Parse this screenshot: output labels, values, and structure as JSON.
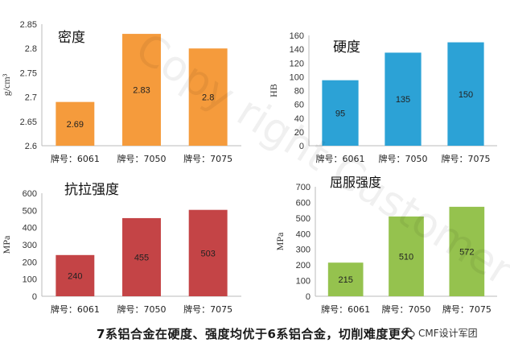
{
  "caption": "7系铝合金在硬度、强度均优于6系铝合金，切削难度更大",
  "watermark": {
    "text": "CMF设计军团",
    "icon": "wechat-icon",
    "background_text": "Copy right Customer"
  },
  "colors": {
    "orange": "#F59B3C",
    "blue": "#2CA2D6",
    "red": "#C44446",
    "green": "#95C24E"
  },
  "chart_data": [
    {
      "type": "bar",
      "title": "密度",
      "ylabel": "g/cm³",
      "ylim": [
        2.6,
        2.85
      ],
      "yticks": [
        "2.6",
        "2.65",
        "2.7",
        "2.75",
        "2.8",
        "2.85"
      ],
      "categories": [
        "牌号：6061",
        "牌号：7050",
        "牌号：7075"
      ],
      "values": [
        2.69,
        2.83,
        2.8
      ],
      "labels": [
        "2.69",
        "2.83",
        "2.8"
      ],
      "color": "#F59B3C"
    },
    {
      "type": "bar",
      "title": "硬度",
      "ylabel": "HB",
      "ylim": [
        0,
        160
      ],
      "yticks": [
        "0",
        "20",
        "40",
        "60",
        "80",
        "100",
        "120",
        "140",
        "160"
      ],
      "categories": [
        "牌号：6061",
        "牌号：7050",
        "牌号：7075"
      ],
      "values": [
        95,
        135,
        150
      ],
      "labels": [
        "95",
        "135",
        "150"
      ],
      "color": "#2CA2D6"
    },
    {
      "type": "bar",
      "title": "抗拉强度",
      "ylabel": "MPa",
      "ylim": [
        0,
        600
      ],
      "yticks": [
        "0",
        "100",
        "200",
        "300",
        "400",
        "500",
        "600"
      ],
      "categories": [
        "牌号：6061",
        "牌号：7050",
        "牌号：7075"
      ],
      "values": [
        240,
        455,
        503
      ],
      "labels": [
        "240",
        "455",
        "503"
      ],
      "color": "#C44446"
    },
    {
      "type": "bar",
      "title": "屈服强度",
      "ylabel": "MPa",
      "ylim": [
        0,
        700
      ],
      "yticks": [
        "0",
        "100",
        "200",
        "300",
        "400",
        "500",
        "600",
        "700"
      ],
      "categories": [
        "牌号：6061",
        "牌号：7050",
        "牌号：7075"
      ],
      "values": [
        215,
        510,
        572
      ],
      "labels": [
        "215",
        "510",
        "572"
      ],
      "color": "#95C24E"
    }
  ]
}
